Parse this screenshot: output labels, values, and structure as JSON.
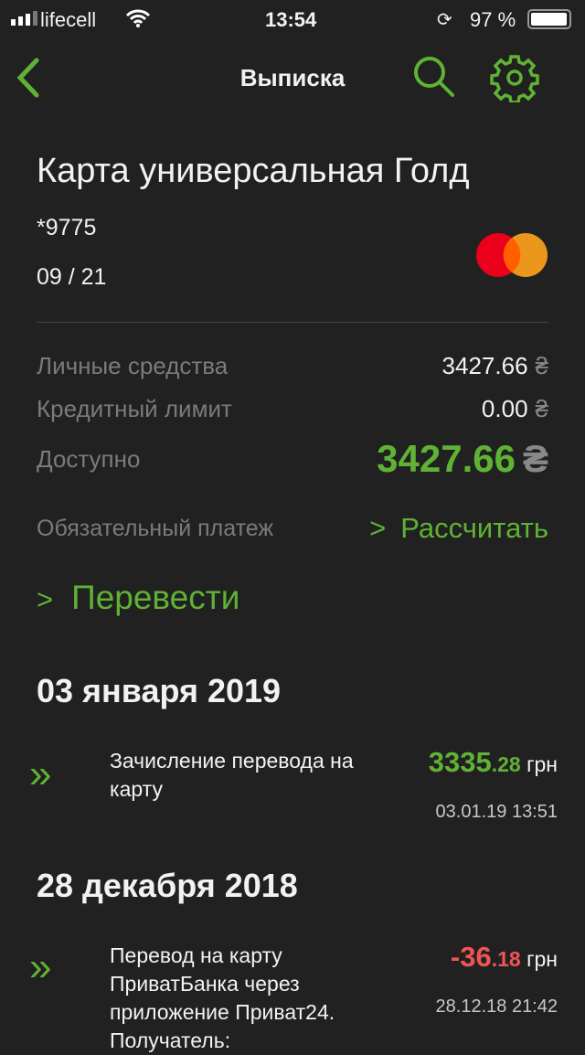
{
  "status": {
    "carrier": "lifecell",
    "time": "13:54",
    "battery": "97 %",
    "battery_level": 0.97
  },
  "nav": {
    "title": "Выписка",
    "icons": [
      "back-chevron-icon",
      "search-icon",
      "gear-icon"
    ]
  },
  "card": {
    "name": "Карта универсальная Голд",
    "number": "*9775",
    "expiry": "09 / 21",
    "brand_icon": "mastercard-icon"
  },
  "balances": [
    {
      "label": "Личные средства",
      "value": "3427.66",
      "currency": "₴"
    },
    {
      "label": "Кредитный лимит",
      "value": "0.00",
      "currency": "₴"
    },
    {
      "label": "Доступно",
      "value": "3427.66",
      "currency": "₴"
    }
  ],
  "payment": {
    "label": "Обязательный платеж",
    "action": "Рассчитать"
  },
  "transfer": {
    "label": "Перевести"
  },
  "groups": [
    {
      "date": "03 января 2019",
      "items": [
        {
          "title": "Зачисление перевода на карту",
          "int": "3335",
          "frac": ".28",
          "unit": "грн",
          "datetime": "03.01.19 13:51",
          "type": "income"
        }
      ]
    },
    {
      "date": "28 декабря 2018",
      "items": [
        {
          "title": "Перевод на карту ПриватБанка через приложение Приват24. Получатель:",
          "int": "-36",
          "frac": ".18",
          "unit": "грн",
          "datetime": "28.12.18 21:42",
          "type": "expense"
        }
      ]
    }
  ],
  "colors": {
    "accent": "#5fb234",
    "negative": "#f05454",
    "background": "#212121"
  }
}
